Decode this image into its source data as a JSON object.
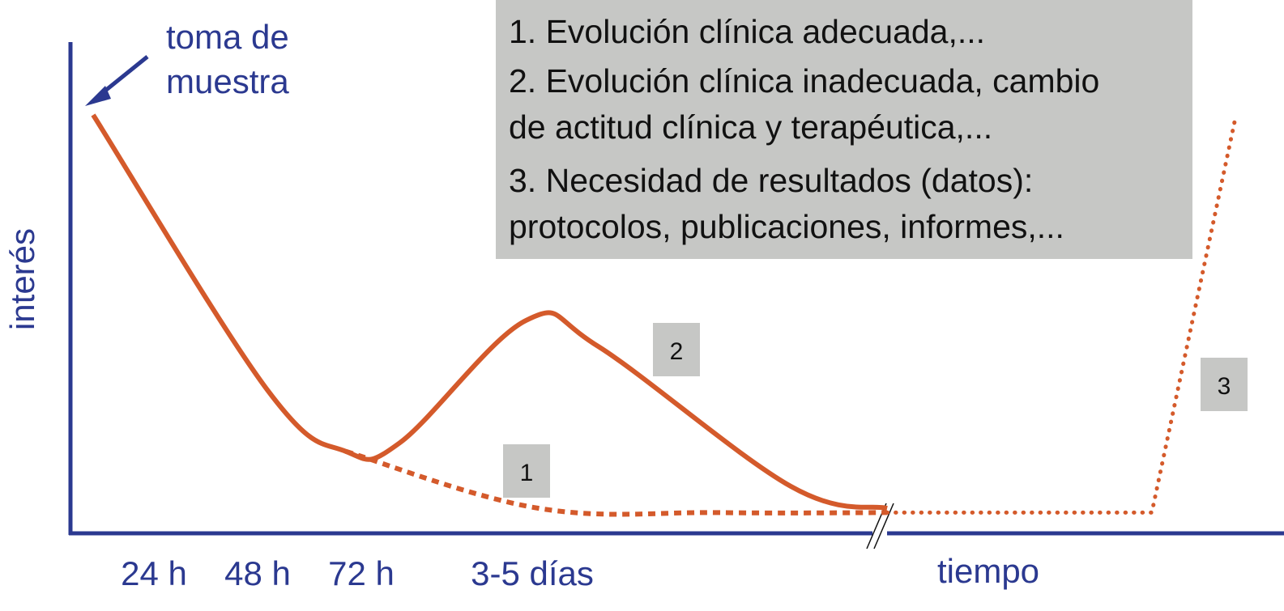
{
  "chart_data": {
    "type": "line",
    "title": "",
    "ylabel": "interés",
    "xlabel": "tiempo",
    "x_ticks": [
      "24 h",
      "48 h",
      "72 h",
      "3-5 días"
    ],
    "annotation": "toma de muestra",
    "annotation_lines": [
      "toma de",
      "muestra"
    ],
    "legend_box": {
      "lines": [
        "1. Evolución clínica adecuada,...",
        "2. Evolución clínica inadecuada, cambio",
        "de actitud clínica y terapéutica,...",
        "3. Necesidad de resultados (datos):",
        "protocolos, publicaciones, informes,..."
      ]
    },
    "curve_labels": [
      "1",
      "2",
      "3"
    ],
    "series": [
      {
        "id": "main",
        "style": "solid",
        "points": [
          [
            0,
            0.95
          ],
          [
            1.45,
            0.32
          ],
          [
            2.1,
            0.18
          ],
          [
            2.55,
            0.2
          ],
          [
            3.6,
            0.48
          ],
          [
            4.2,
            0.42
          ],
          [
            5.8,
            0.1
          ],
          [
            6.6,
            0.05
          ]
        ]
      },
      {
        "id": "1",
        "style": "dashed",
        "points": [
          [
            2.1,
            0.18
          ],
          [
            3.7,
            0.05
          ],
          [
            5.2,
            0.04
          ],
          [
            6.6,
            0.04
          ]
        ]
      },
      {
        "id": "2",
        "style": "solid",
        "points": [
          [
            3.6,
            0.48
          ],
          [
            4.2,
            0.42
          ],
          [
            5.8,
            0.1
          ],
          [
            6.6,
            0.05
          ]
        ]
      },
      {
        "id": "3",
        "style": "dotted",
        "points": [
          [
            6.6,
            0.04
          ],
          [
            8.8,
            0.04
          ],
          [
            9.5,
            0.95
          ]
        ]
      }
    ],
    "colors": {
      "axis": "#2b3990",
      "curve": "#d45a2b",
      "box": "#c6c7c5"
    },
    "axis_break": true
  }
}
